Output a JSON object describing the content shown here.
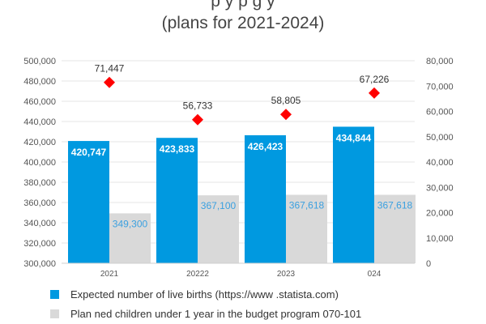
{
  "title": {
    "line1": "p              y        p                                                        g               y",
    "line2": "(plans for 2021-2024)"
  },
  "colors": {
    "series1": "#0099e0",
    "series2": "#d9d9d9",
    "marker": "#ff0000",
    "grid": "#e4e4e4"
  },
  "chart_data": {
    "type": "bar",
    "categories": [
      "2021",
      "20222",
      "2023",
      "024"
    ],
    "series": [
      {
        "name": "Expected number of live births (https://www .statista.com)",
        "values": [
          420747,
          423833,
          426423,
          434844
        ],
        "labels": [
          "420,747",
          "423,833",
          "426,423",
          "434,844"
        ]
      },
      {
        "name": "Plan ned children under 1 year in the budget program 070-101",
        "values": [
          349300,
          367100,
          367618,
          367618
        ],
        "labels": [
          "349,300",
          "367,100",
          "367,618",
          "367,618"
        ]
      }
    ],
    "markers": {
      "values": [
        71447,
        56733,
        58805,
        67226
      ],
      "labels": [
        "71,447",
        "56,733",
        "58,805",
        "67,226"
      ]
    },
    "y_left": {
      "min": 300000,
      "max": 500000,
      "ticks": [
        "300,000",
        "320,000",
        "340,000",
        "360,000",
        "380,000",
        "400,000",
        "420,000",
        "440,000",
        "460,000",
        "480,000",
        "500,000"
      ]
    },
    "y_right": {
      "min": 0,
      "max": 80000,
      "ticks": [
        "0",
        "10,000",
        "20,000",
        "30,000",
        "40,000",
        "50,000",
        "60,000",
        "70,000",
        "80,000"
      ]
    },
    "grid": true,
    "legend_position": "bottom-left"
  }
}
